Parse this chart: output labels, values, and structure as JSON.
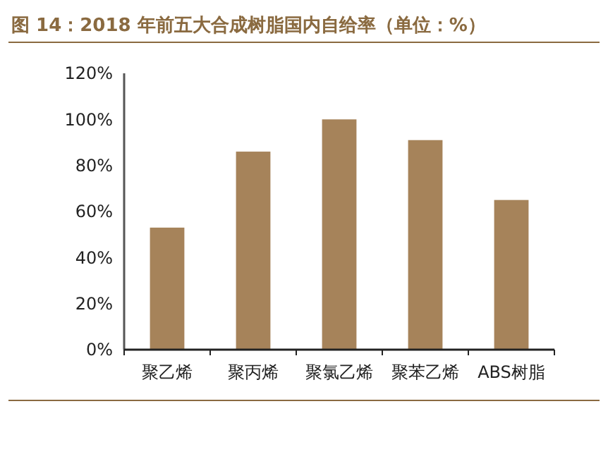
{
  "chart_data": {
    "type": "bar",
    "title": "图 14：2018 年前五大合成树脂国内自给率（单位：%）",
    "categories": [
      "聚乙烯",
      "聚丙烯",
      "聚氯乙烯",
      "聚苯乙烯",
      "ABS树脂"
    ],
    "values": [
      53,
      86,
      100,
      91,
      65
    ],
    "color": "#a6835a",
    "ylim": [
      0,
      120
    ],
    "yticks": [
      {
        "value": 0,
        "label": "0%"
      },
      {
        "value": 20,
        "label": "20%"
      },
      {
        "value": 40,
        "label": "40%"
      },
      {
        "value": 60,
        "label": "60%"
      },
      {
        "value": 80,
        "label": "80%"
      },
      {
        "value": 100,
        "label": "100%"
      },
      {
        "value": 120,
        "label": "120%"
      }
    ],
    "grid": false
  }
}
